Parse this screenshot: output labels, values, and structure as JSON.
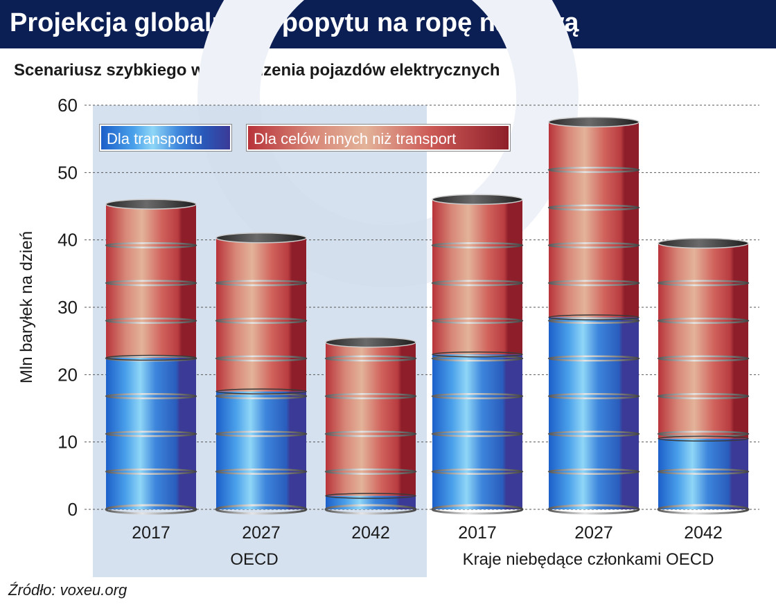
{
  "header": {
    "title": "Projekcja globalnego popytu na ropę naftową",
    "subtitle": "Scenariusz szybkiego wprowadzenia pojazdów elektrycznych"
  },
  "legend": {
    "transport": "Dla transportu",
    "other": "Dla celów innych niż transport"
  },
  "source": "Źródło: voxeu.org",
  "colors": {
    "header_bg": "#0c1f54",
    "transport": "#2f6fd0",
    "other": "#c9484a",
    "group_highlight": "#cfdcec"
  },
  "chart_data": {
    "type": "bar",
    "stacked": true,
    "ylabel": "Mln baryłek na dzień",
    "ylim": [
      0,
      60
    ],
    "yticks": [
      0,
      10,
      20,
      30,
      40,
      50,
      60
    ],
    "grid": true,
    "legend_position": "top-left",
    "groups": [
      "OECD",
      "Kraje niebędące członkami OECD"
    ],
    "categories": [
      "2017",
      "2027",
      "2042",
      "2017",
      "2027",
      "2042"
    ],
    "category_group": [
      0,
      0,
      0,
      1,
      1,
      1
    ],
    "series": [
      {
        "name": "Dla transportu",
        "values": [
          22.5,
          17.5,
          2.0,
          23.0,
          28.5,
          10.5
        ]
      },
      {
        "name": "Dla celów innych niż transport",
        "values": [
          22.8,
          22.8,
          22.8,
          23.0,
          29.0,
          29.0
        ]
      }
    ]
  }
}
